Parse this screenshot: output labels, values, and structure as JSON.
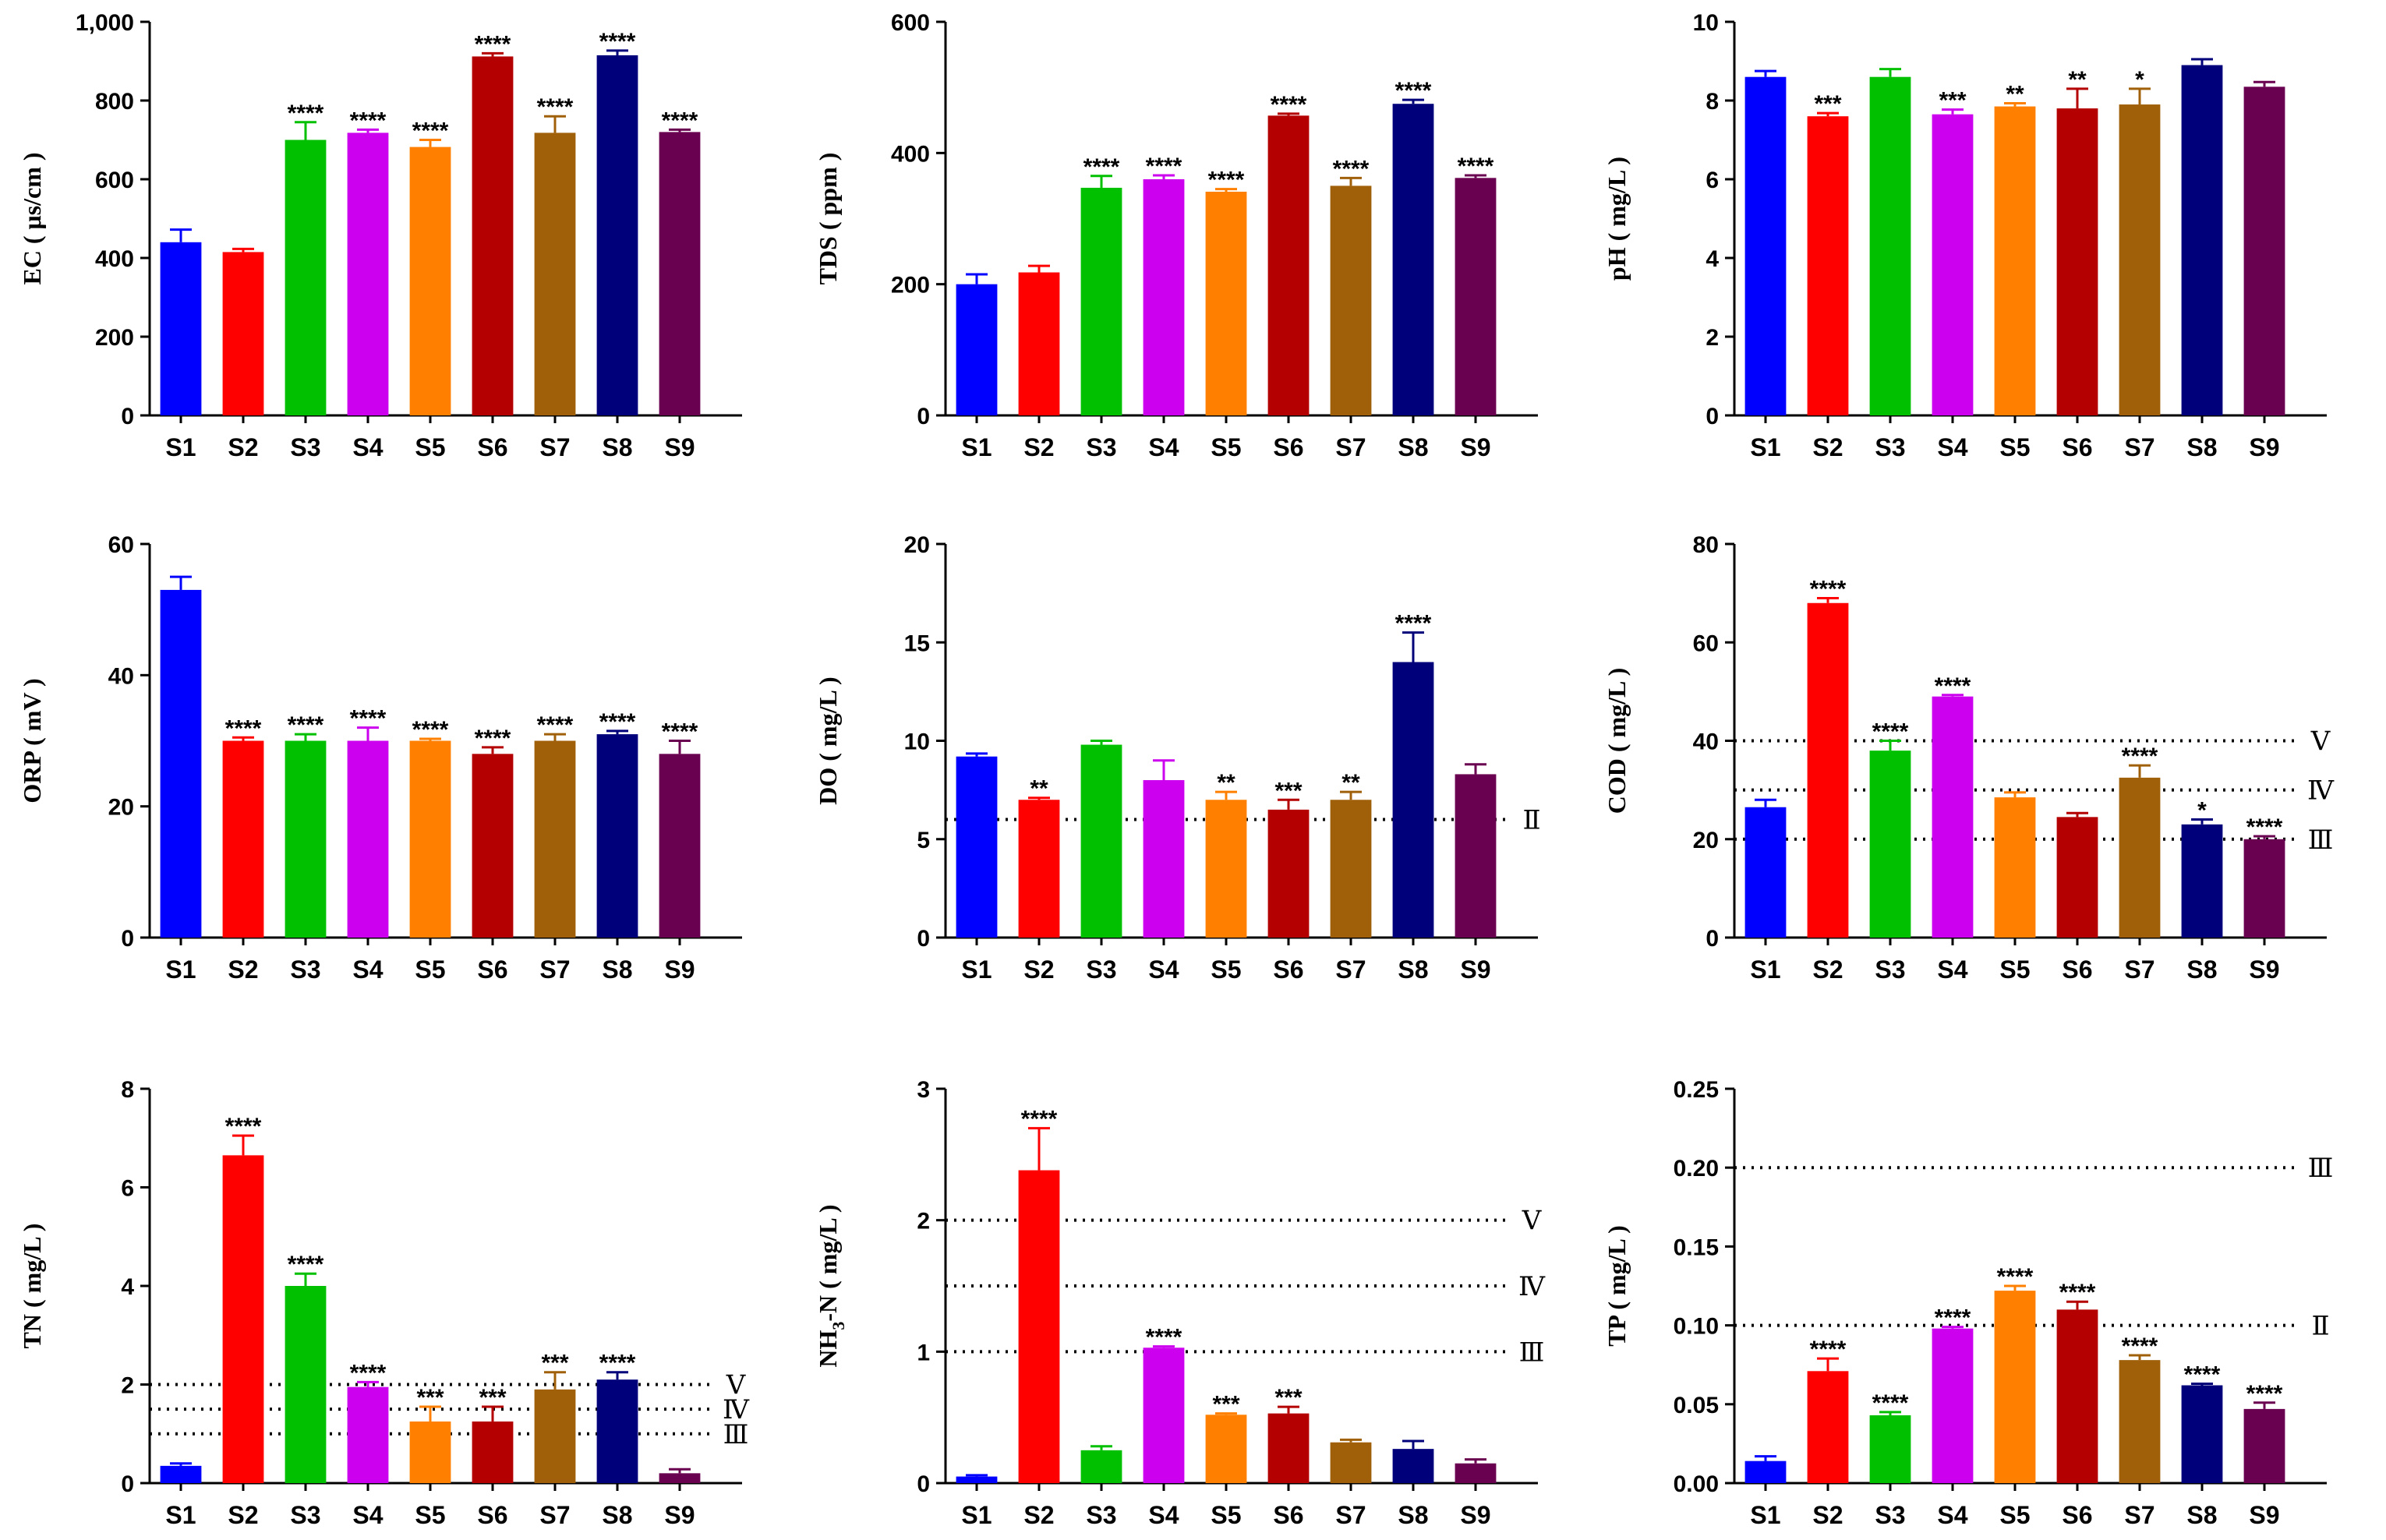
{
  "colors": [
    "#0000ff",
    "#ff0000",
    "#00c000",
    "#cc00ee",
    "#ff8000",
    "#b40000",
    "#a0600a",
    "#00007a",
    "#6a0050"
  ],
  "chart_data": [
    {
      "type": "bar",
      "ylabel": "EC ( μs/cm )",
      "categories": [
        "S1",
        "S2",
        "S3",
        "S4",
        "S5",
        "S6",
        "S7",
        "S8",
        "S9"
      ],
      "values": [
        440,
        415,
        700,
        718,
        682,
        912,
        718,
        915,
        720
      ],
      "errors": [
        32,
        8,
        45,
        8,
        18,
        8,
        42,
        12,
        6
      ],
      "significance": [
        "",
        "",
        "****",
        "****",
        "****",
        "****",
        "****",
        "****",
        "****"
      ],
      "ylim": [
        0,
        1000
      ],
      "yticks": [
        0,
        200,
        400,
        600,
        800,
        1000
      ],
      "ytick_labels": [
        "0",
        "200",
        "400",
        "600",
        "800",
        "1,000"
      ],
      "reference_lines": []
    },
    {
      "type": "bar",
      "ylabel": "TDS ( ppm )",
      "categories": [
        "S1",
        "S2",
        "S3",
        "S4",
        "S5",
        "S6",
        "S7",
        "S8",
        "S9"
      ],
      "values": [
        200,
        218,
        347,
        360,
        341,
        457,
        350,
        475,
        362
      ],
      "errors": [
        15,
        10,
        18,
        6,
        4,
        3,
        12,
        6,
        4
      ],
      "significance": [
        "",
        "",
        "****",
        "****",
        "****",
        "****",
        "****",
        "****",
        "****"
      ],
      "ylim": [
        0,
        600
      ],
      "yticks": [
        0,
        200,
        400,
        600
      ],
      "ytick_labels": [
        "0",
        "200",
        "400",
        "600"
      ],
      "reference_lines": []
    },
    {
      "type": "bar",
      "ylabel": "pH ( mg/L )",
      "categories": [
        "S1",
        "S2",
        "S3",
        "S4",
        "S5",
        "S6",
        "S7",
        "S8",
        "S9"
      ],
      "values": [
        8.6,
        7.6,
        8.6,
        7.65,
        7.85,
        7.8,
        7.9,
        8.9,
        8.35
      ],
      "errors": [
        0.15,
        0.08,
        0.2,
        0.12,
        0.08,
        0.5,
        0.4,
        0.15,
        0.12
      ],
      "significance": [
        "",
        "***",
        "",
        "***",
        "**",
        "**",
        "*",
        "",
        ""
      ],
      "ylim": [
        0,
        10
      ],
      "yticks": [
        0,
        2,
        4,
        6,
        8,
        10
      ],
      "ytick_labels": [
        "0",
        "2",
        "4",
        "6",
        "8",
        "10"
      ],
      "reference_lines": []
    },
    {
      "type": "bar",
      "ylabel": "ORP ( mV )",
      "categories": [
        "S1",
        "S2",
        "S3",
        "S4",
        "S5",
        "S6",
        "S7",
        "S8",
        "S9"
      ],
      "values": [
        53,
        30,
        30,
        30,
        30,
        28,
        30,
        31,
        28
      ],
      "errors": [
        2,
        0.5,
        1,
        2,
        0.3,
        1,
        1,
        0.5,
        2
      ],
      "significance": [
        "",
        "****",
        "****",
        "****",
        "****",
        "****",
        "****",
        "****",
        "****"
      ],
      "ylim": [
        0,
        60
      ],
      "yticks": [
        0,
        20,
        40,
        60
      ],
      "ytick_labels": [
        "0",
        "20",
        "40",
        "60"
      ],
      "reference_lines": []
    },
    {
      "type": "bar",
      "ylabel": "DO ( mg/L )",
      "categories": [
        "S1",
        "S2",
        "S3",
        "S4",
        "S5",
        "S6",
        "S7",
        "S8",
        "S9"
      ],
      "values": [
        9.2,
        7.0,
        9.8,
        8.0,
        7.0,
        6.5,
        7.0,
        14.0,
        8.3
      ],
      "errors": [
        0.15,
        0.1,
        0.2,
        1.0,
        0.4,
        0.5,
        0.4,
        1.5,
        0.5
      ],
      "significance": [
        "",
        "**",
        "",
        "",
        "**",
        "***",
        "**",
        "****",
        ""
      ],
      "ylim": [
        0,
        20
      ],
      "yticks": [
        0,
        5,
        10,
        15,
        20
      ],
      "ytick_labels": [
        "0",
        "5",
        "10",
        "15",
        "20"
      ],
      "reference_lines": [
        {
          "value": 6,
          "label": "Ⅱ"
        }
      ]
    },
    {
      "type": "bar",
      "ylabel": "COD ( mg/L )",
      "categories": [
        "S1",
        "S2",
        "S3",
        "S4",
        "S5",
        "S6",
        "S7",
        "S8",
        "S9"
      ],
      "values": [
        26.5,
        68,
        38,
        49,
        28.5,
        24.5,
        32.5,
        23,
        20
      ],
      "errors": [
        1.5,
        1,
        2,
        0.3,
        1,
        0.8,
        2.5,
        1,
        0.6
      ],
      "significance": [
        "",
        "****",
        "****",
        "****",
        "",
        "",
        "****",
        "*",
        "****"
      ],
      "ylim": [
        0,
        80
      ],
      "yticks": [
        0,
        20,
        40,
        60,
        80
      ],
      "ytick_labels": [
        "0",
        "20",
        "40",
        "60",
        "80"
      ],
      "reference_lines": [
        {
          "value": 40,
          "label": "Ⅴ"
        },
        {
          "value": 30,
          "label": "Ⅳ"
        },
        {
          "value": 20,
          "label": "Ⅲ"
        }
      ]
    },
    {
      "type": "bar",
      "ylabel": "TN ( mg/L )",
      "categories": [
        "S1",
        "S2",
        "S3",
        "S4",
        "S5",
        "S6",
        "S7",
        "S8",
        "S9"
      ],
      "values": [
        0.35,
        6.65,
        4.0,
        1.95,
        1.25,
        1.25,
        1.9,
        2.1,
        0.2
      ],
      "errors": [
        0.05,
        0.4,
        0.25,
        0.1,
        0.3,
        0.3,
        0.35,
        0.15,
        0.08
      ],
      "significance": [
        "",
        "****",
        "****",
        "****",
        "***",
        "***",
        "***",
        "****",
        ""
      ],
      "ylim": [
        0,
        8
      ],
      "yticks": [
        0,
        2,
        4,
        6,
        8
      ],
      "ytick_labels": [
        "0",
        "2",
        "4",
        "6",
        "8"
      ],
      "reference_lines": [
        {
          "value": 2.0,
          "label": "Ⅴ"
        },
        {
          "value": 1.5,
          "label": "Ⅳ"
        },
        {
          "value": 1.0,
          "label": "Ⅲ"
        }
      ]
    },
    {
      "type": "bar",
      "ylabel": "NH",
      "ylabel_sub": "3",
      "ylabel_rest": "-N ( mg/L )",
      "categories": [
        "S1",
        "S2",
        "S3",
        "S4",
        "S5",
        "S6",
        "S7",
        "S8",
        "S9"
      ],
      "values": [
        0.05,
        2.38,
        0.25,
        1.03,
        0.52,
        0.53,
        0.31,
        0.26,
        0.15
      ],
      "errors": [
        0.01,
        0.32,
        0.03,
        0.01,
        0.01,
        0.05,
        0.02,
        0.06,
        0.03
      ],
      "significance": [
        "",
        "****",
        "",
        "****",
        "***",
        "***",
        "",
        "",
        ""
      ],
      "ylim": [
        0,
        3
      ],
      "yticks": [
        0,
        1,
        2,
        3
      ],
      "ytick_labels": [
        "0",
        "1",
        "2",
        "3"
      ],
      "reference_lines": [
        {
          "value": 2.0,
          "label": "Ⅴ"
        },
        {
          "value": 1.5,
          "label": "Ⅳ"
        },
        {
          "value": 1.0,
          "label": "Ⅲ"
        }
      ]
    },
    {
      "type": "bar",
      "ylabel": "TP ( mg/L )",
      "categories": [
        "S1",
        "S2",
        "S3",
        "S4",
        "S5",
        "S6",
        "S7",
        "S8",
        "S9"
      ],
      "values": [
        0.014,
        0.071,
        0.043,
        0.098,
        0.122,
        0.11,
        0.078,
        0.062,
        0.047
      ],
      "errors": [
        0.003,
        0.008,
        0.002,
        0.001,
        0.003,
        0.005,
        0.003,
        0.001,
        0.004
      ],
      "significance": [
        "",
        "****",
        "****",
        "****",
        "****",
        "****",
        "****",
        "****",
        "****"
      ],
      "ylim": [
        0,
        0.25
      ],
      "yticks": [
        0,
        0.05,
        0.1,
        0.15,
        0.2,
        0.25
      ],
      "ytick_labels": [
        "0.00",
        "0.05",
        "0.10",
        "0.15",
        "0.20",
        "0.25"
      ],
      "reference_lines": [
        {
          "value": 0.2,
          "label": "Ⅲ"
        },
        {
          "value": 0.1,
          "label": "Ⅱ"
        }
      ]
    }
  ]
}
